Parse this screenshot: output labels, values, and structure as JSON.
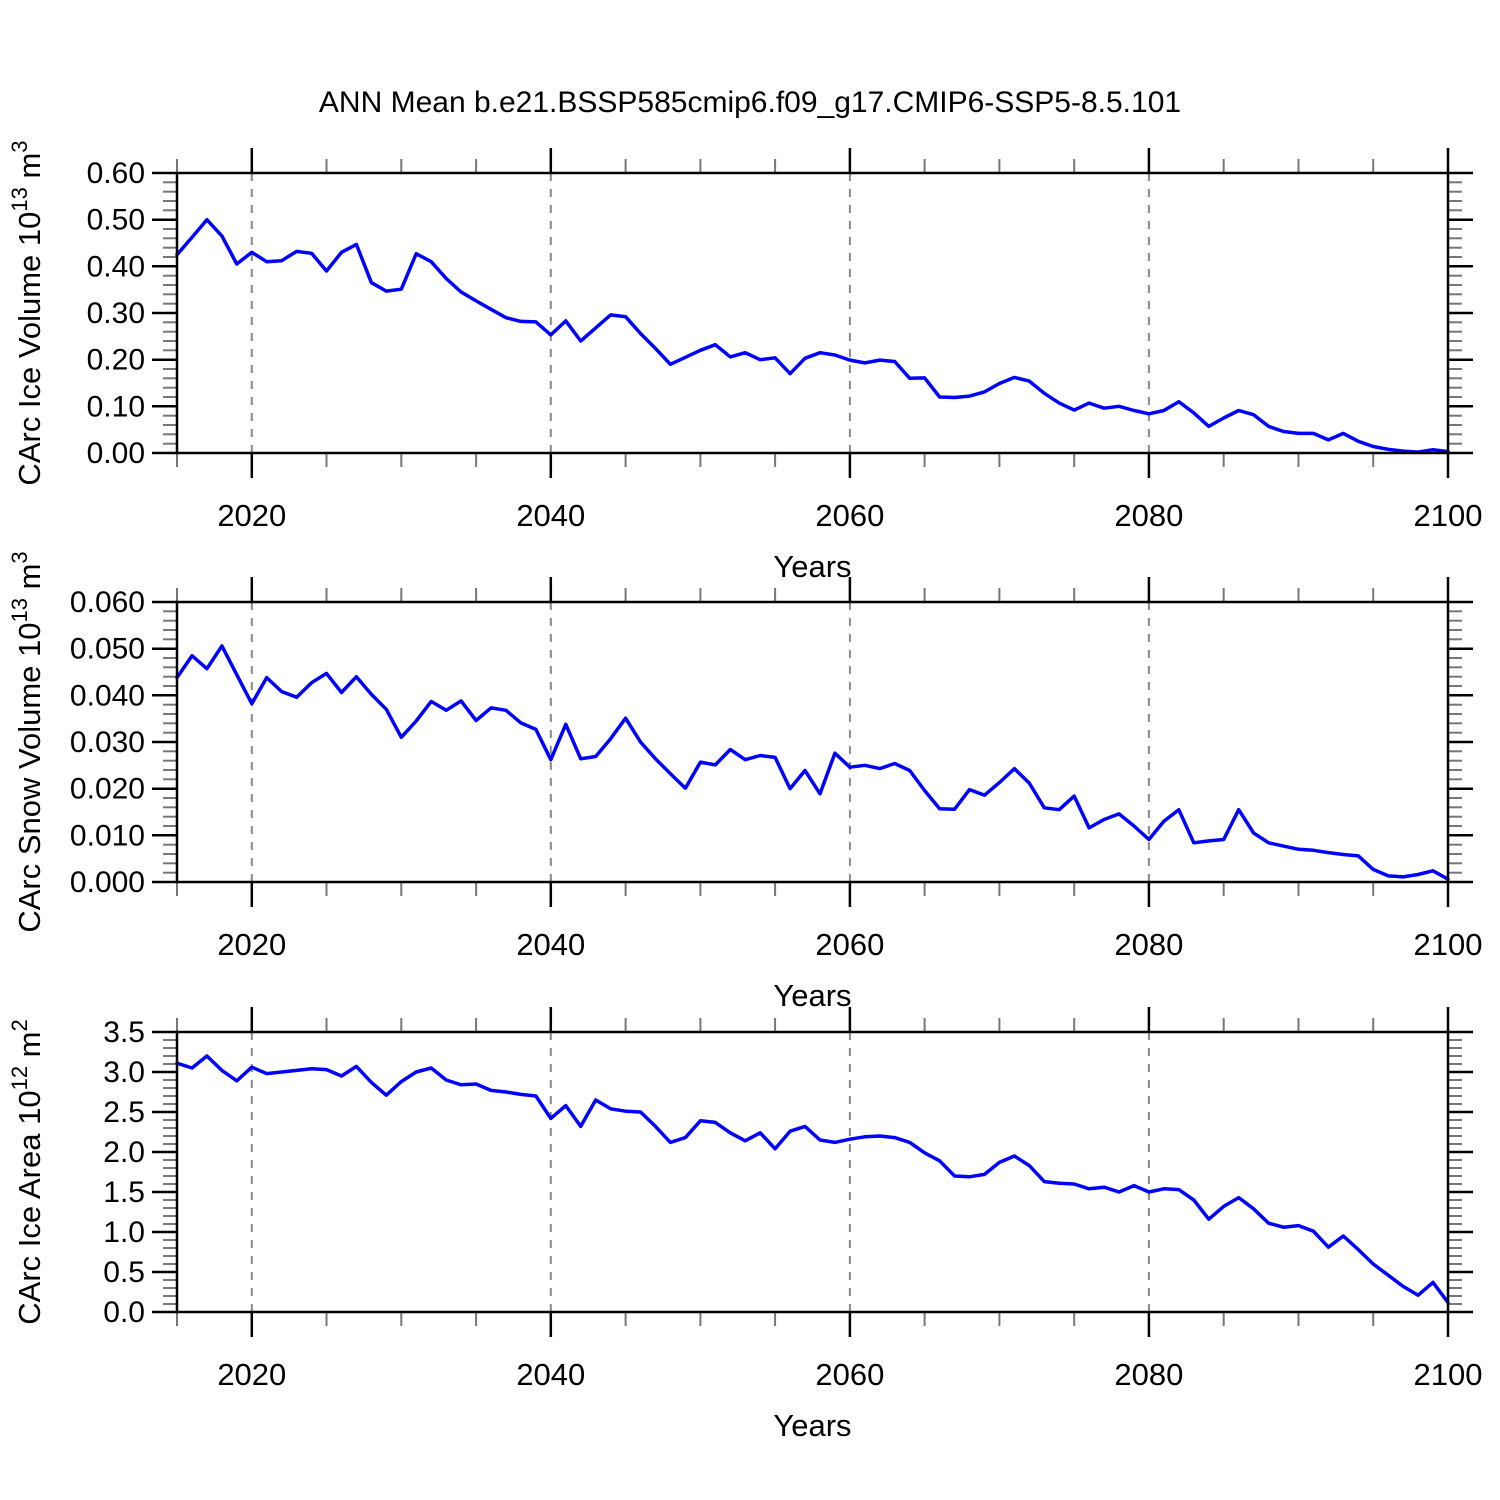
{
  "title": "ANN Mean b.e21.BSSP585cmip6.f09_g17.CMIP6-SSP5-8.5.101",
  "line_color": "#0000ff",
  "axis_color": "#000000",
  "grid_color": "#888888",
  "minor_tick_color": "#777777",
  "x_axis": {
    "label": "Years",
    "lim": [
      2015,
      2100
    ],
    "major_ticks": [
      2020,
      2040,
      2060,
      2080,
      2100
    ],
    "major_labels": [
      "2020",
      "2040",
      "2060",
      "2080",
      "2100"
    ],
    "minor_step": 5,
    "grid_years": [
      2020,
      2040,
      2060,
      2080
    ]
  },
  "chart_data": [
    {
      "type": "line",
      "name": "ice-volume",
      "title": "",
      "ylabel": "CArc Ice Volume 10^13 m^3",
      "ylabel_parts": [
        {
          "t": "CArc Ice Volume 10"
        },
        {
          "t": "13",
          "sup": true
        },
        {
          "t": " m"
        },
        {
          "t": "3",
          "sup": true
        }
      ],
      "ylim": [
        0.0,
        0.6
      ],
      "ytick_values": [
        0.0,
        0.1,
        0.2,
        0.3,
        0.4,
        0.5,
        0.6
      ],
      "ytick_labels": [
        "0.00",
        "0.10",
        "0.20",
        "0.30",
        "0.40",
        "0.50",
        "0.60"
      ],
      "ytick_minor_step": 0.02,
      "x_start": 2015,
      "x_step": 1,
      "values": [
        0.425,
        0.462,
        0.5,
        0.465,
        0.405,
        0.43,
        0.41,
        0.412,
        0.432,
        0.428,
        0.39,
        0.43,
        0.447,
        0.365,
        0.347,
        0.351,
        0.427,
        0.41,
        0.374,
        0.345,
        0.326,
        0.308,
        0.29,
        0.282,
        0.281,
        0.253,
        0.283,
        0.24,
        0.268,
        0.296,
        0.292,
        0.256,
        0.224,
        0.19,
        0.205,
        0.22,
        0.232,
        0.206,
        0.215,
        0.2,
        0.204,
        0.17,
        0.203,
        0.215,
        0.21,
        0.199,
        0.193,
        0.199,
        0.196,
        0.16,
        0.161,
        0.12,
        0.119,
        0.122,
        0.131,
        0.149,
        0.162,
        0.154,
        0.128,
        0.107,
        0.092,
        0.107,
        0.096,
        0.1,
        0.091,
        0.084,
        0.091,
        0.11,
        0.086,
        0.057,
        0.075,
        0.091,
        0.082,
        0.057,
        0.046,
        0.042,
        0.042,
        0.028,
        0.042,
        0.025,
        0.014,
        0.008,
        0.004,
        0.002,
        0.007,
        0.003
      ]
    },
    {
      "type": "line",
      "name": "snow-volume",
      "title": "",
      "ylabel": "CArc Snow Volume 10^13 m^3",
      "ylabel_parts": [
        {
          "t": "CArc Snow Volume 10"
        },
        {
          "t": "13",
          "sup": true
        },
        {
          "t": " m"
        },
        {
          "t": "3",
          "sup": true
        }
      ],
      "ylim": [
        0.0,
        0.06
      ],
      "ytick_values": [
        0.0,
        0.01,
        0.02,
        0.03,
        0.04,
        0.05,
        0.06
      ],
      "ytick_labels": [
        "0.000",
        "0.010",
        "0.020",
        "0.030",
        "0.040",
        "0.050",
        "0.060"
      ],
      "ytick_minor_step": 0.002,
      "x_start": 2015,
      "x_step": 1,
      "values": [
        0.0438,
        0.0485,
        0.0457,
        0.0506,
        0.0444,
        0.0382,
        0.0438,
        0.0408,
        0.0396,
        0.0427,
        0.0447,
        0.0406,
        0.044,
        0.0402,
        0.037,
        0.031,
        0.0345,
        0.0387,
        0.0368,
        0.0388,
        0.0346,
        0.0373,
        0.0368,
        0.0341,
        0.0327,
        0.0262,
        0.0338,
        0.0264,
        0.0269,
        0.0307,
        0.0351,
        0.03,
        0.0264,
        0.0232,
        0.0201,
        0.0257,
        0.0251,
        0.0284,
        0.0262,
        0.0271,
        0.0267,
        0.02,
        0.0239,
        0.0189,
        0.0276,
        0.0246,
        0.025,
        0.0243,
        0.0254,
        0.0239,
        0.0196,
        0.0157,
        0.0156,
        0.0198,
        0.0186,
        0.0213,
        0.0243,
        0.0212,
        0.0159,
        0.0155,
        0.0184,
        0.0116,
        0.0134,
        0.0146,
        0.012,
        0.0091,
        0.013,
        0.0155,
        0.0084,
        0.0088,
        0.0091,
        0.0155,
        0.0105,
        0.0084,
        0.0077,
        0.007,
        0.0068,
        0.0063,
        0.0059,
        0.0056,
        0.0027,
        0.0013,
        0.0011,
        0.0016,
        0.0024,
        0.0006
      ]
    },
    {
      "type": "line",
      "name": "ice-area",
      "title": "",
      "ylabel": "CArc Ice Area 10^12 m^2",
      "ylabel_parts": [
        {
          "t": "CArc Ice Area 10"
        },
        {
          "t": "12",
          "sup": true
        },
        {
          "t": " m"
        },
        {
          "t": "2",
          "sup": true
        }
      ],
      "ylim": [
        0.0,
        3.5
      ],
      "ytick_values": [
        0.0,
        0.5,
        1.0,
        1.5,
        2.0,
        2.5,
        3.0,
        3.5
      ],
      "ytick_labels": [
        "0.0",
        "0.5",
        "1.0",
        "1.5",
        "2.0",
        "2.5",
        "3.0",
        "3.5"
      ],
      "ytick_minor_step": 0.1,
      "x_start": 2015,
      "x_step": 1,
      "values": [
        3.11,
        3.05,
        3.2,
        3.02,
        2.89,
        3.06,
        2.98,
        3.0,
        3.02,
        3.04,
        3.03,
        2.95,
        3.07,
        2.87,
        2.71,
        2.88,
        3.0,
        3.05,
        2.9,
        2.84,
        2.85,
        2.77,
        2.75,
        2.72,
        2.7,
        2.42,
        2.58,
        2.32,
        2.65,
        2.54,
        2.51,
        2.5,
        2.32,
        2.12,
        2.18,
        2.39,
        2.37,
        2.24,
        2.14,
        2.24,
        2.04,
        2.26,
        2.32,
        2.15,
        2.12,
        2.16,
        2.19,
        2.2,
        2.18,
        2.12,
        1.99,
        1.89,
        1.7,
        1.69,
        1.72,
        1.87,
        1.95,
        1.83,
        1.63,
        1.61,
        1.6,
        1.54,
        1.56,
        1.5,
        1.58,
        1.5,
        1.54,
        1.53,
        1.4,
        1.16,
        1.32,
        1.43,
        1.29,
        1.11,
        1.06,
        1.08,
        1.01,
        0.81,
        0.95,
        0.78,
        0.6,
        0.46,
        0.32,
        0.21,
        0.37,
        0.12
      ]
    }
  ]
}
